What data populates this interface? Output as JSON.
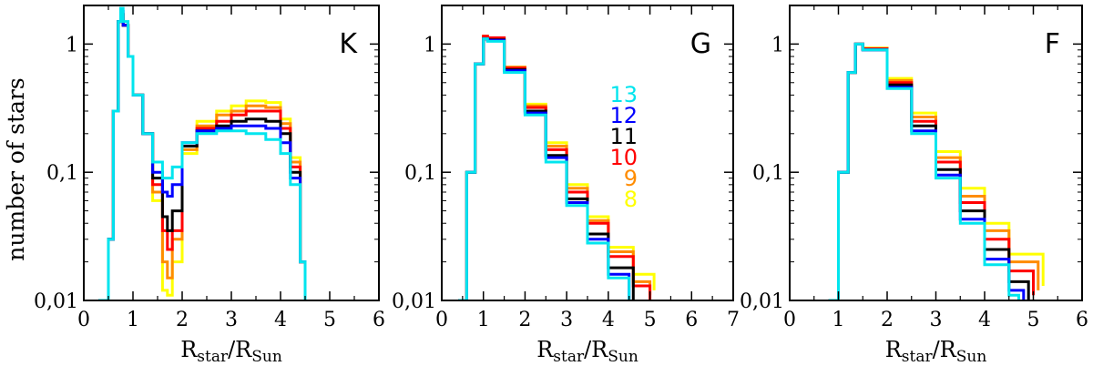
{
  "figure": {
    "ylabel": "number of stars",
    "xlabel_main": "R",
    "xlabel_sub1": "star",
    "xlabel_slash": "/R",
    "xlabel_sub2": "Sun"
  },
  "colors": {
    "8": "#ffff00",
    "9": "#ff8c00",
    "10": "#ff0000",
    "11": "#000000",
    "12": "#0000ff",
    "13": "#00e5ee"
  },
  "magnitude_legend": {
    "labels": [
      "13",
      "12",
      "11",
      "10",
      "9",
      "8"
    ],
    "colors": [
      "#00e5ee",
      "#0000ff",
      "#000000",
      "#ff0000",
      "#ff8c00",
      "#ffff00"
    ]
  },
  "chart_data": [
    {
      "type": "line",
      "panel_label": "K",
      "xlim": [
        0,
        6
      ],
      "ylim": [
        0.01,
        2
      ],
      "yscale": "log",
      "xticks": [
        "0",
        "1",
        "2",
        "3",
        "4",
        "5",
        "6"
      ],
      "yticks": [
        "0,01",
        "0,1",
        "1"
      ],
      "grid": false,
      "series": [
        {
          "name": "13",
          "color": "#00e5ee",
          "x": [
            0.3,
            0.5,
            0.6,
            0.7,
            0.75,
            0.8,
            0.9,
            1.0,
            1.2,
            1.4,
            1.6,
            1.7,
            1.8,
            2.0,
            2.3,
            2.7,
            3.0,
            3.3,
            3.7,
            4.0,
            4.2,
            4.4,
            4.5
          ],
          "y": [
            0.01,
            0.03,
            0.3,
            1.5,
            1.9,
            1.5,
            0.8,
            0.4,
            0.2,
            0.12,
            0.09,
            0.09,
            0.11,
            0.17,
            0.2,
            0.21,
            0.21,
            0.2,
            0.18,
            0.14,
            0.08,
            0.02,
            0.01
          ]
        },
        {
          "name": "12",
          "color": "#0000ff",
          "x": [
            0.3,
            0.5,
            0.6,
            0.7,
            0.75,
            0.8,
            0.9,
            1.0,
            1.2,
            1.4,
            1.6,
            1.7,
            1.8,
            2.0,
            2.3,
            2.7,
            3.0,
            3.3,
            3.7,
            4.0,
            4.2,
            4.4,
            4.5
          ],
          "y": [
            0.01,
            0.03,
            0.3,
            1.5,
            1.8,
            1.4,
            0.8,
            0.4,
            0.2,
            0.1,
            0.07,
            0.065,
            0.08,
            0.17,
            0.21,
            0.22,
            0.23,
            0.23,
            0.22,
            0.17,
            0.09,
            0.02,
            0.01
          ]
        },
        {
          "name": "11",
          "color": "#000000",
          "x": [
            0.3,
            0.5,
            0.6,
            0.7,
            0.75,
            0.8,
            0.9,
            1.0,
            1.2,
            1.4,
            1.6,
            1.7,
            1.8,
            2.0,
            2.3,
            2.7,
            3.0,
            3.3,
            3.7,
            4.0,
            4.2,
            4.4,
            4.5
          ],
          "y": [
            0.01,
            0.03,
            0.3,
            1.5,
            1.7,
            1.4,
            0.8,
            0.4,
            0.2,
            0.09,
            0.045,
            0.035,
            0.05,
            0.16,
            0.21,
            0.23,
            0.25,
            0.26,
            0.25,
            0.2,
            0.1,
            0.02,
            0.01
          ]
        },
        {
          "name": "10",
          "color": "#ff0000",
          "x": [
            0.3,
            0.5,
            0.6,
            0.7,
            0.75,
            0.8,
            0.9,
            1.0,
            1.2,
            1.4,
            1.6,
            1.7,
            1.8,
            2.0,
            2.3,
            2.7,
            3.0,
            3.3,
            3.7,
            4.0,
            4.2,
            4.4,
            4.5
          ],
          "y": [
            0.01,
            0.03,
            0.3,
            1.5,
            1.7,
            1.4,
            0.8,
            0.4,
            0.2,
            0.08,
            0.035,
            0.025,
            0.035,
            0.16,
            0.22,
            0.25,
            0.28,
            0.3,
            0.3,
            0.22,
            0.11,
            0.02,
            0.01
          ]
        },
        {
          "name": "9",
          "color": "#ff8c00",
          "x": [
            0.3,
            0.5,
            0.6,
            0.7,
            0.75,
            0.8,
            0.9,
            1.0,
            1.2,
            1.4,
            1.6,
            1.7,
            1.8,
            2.0,
            2.3,
            2.7,
            3.0,
            3.3,
            3.7,
            4.0,
            4.2,
            4.4,
            4.5
          ],
          "y": [
            0.01,
            0.03,
            0.3,
            1.5,
            1.7,
            1.4,
            0.8,
            0.4,
            0.2,
            0.07,
            0.02,
            0.015,
            0.03,
            0.15,
            0.23,
            0.28,
            0.3,
            0.33,
            0.32,
            0.24,
            0.12,
            0.02,
            0.01
          ]
        },
        {
          "name": "8",
          "color": "#ffff00",
          "x": [
            0.3,
            0.5,
            0.6,
            0.7,
            0.75,
            0.8,
            0.9,
            1.0,
            1.2,
            1.4,
            1.6,
            1.7,
            1.8,
            2.0,
            2.3,
            2.7,
            3.0,
            3.3,
            3.7,
            4.0,
            4.2,
            4.4,
            4.5
          ],
          "y": [
            0.01,
            0.03,
            0.3,
            1.5,
            1.7,
            1.4,
            0.8,
            0.4,
            0.2,
            0.06,
            0.012,
            0.011,
            0.02,
            0.14,
            0.25,
            0.3,
            0.33,
            0.36,
            0.35,
            0.26,
            0.13,
            0.02,
            0.01
          ]
        }
      ]
    },
    {
      "type": "line",
      "panel_label": "G",
      "xlim": [
        0,
        7
      ],
      "ylim": [
        0.01,
        2
      ],
      "yscale": "log",
      "xticks": [
        "0",
        "1",
        "2",
        "3",
        "4",
        "5",
        "6",
        "7"
      ],
      "yticks": [
        "0,01",
        "0,1",
        "1"
      ],
      "grid": false,
      "series": [
        {
          "name": "13",
          "color": "#00e5ee",
          "x": [
            0.4,
            0.6,
            0.8,
            1.0,
            1.1,
            1.5,
            2.0,
            2.5,
            3.0,
            3.5,
            4.0,
            4.5
          ],
          "y": [
            0.01,
            0.1,
            0.7,
            1.1,
            1.05,
            0.6,
            0.28,
            0.12,
            0.055,
            0.028,
            0.015,
            0.01
          ]
        },
        {
          "name": "12",
          "color": "#0000ff",
          "x": [
            0.4,
            0.6,
            0.8,
            1.0,
            1.1,
            1.5,
            2.0,
            2.5,
            3.0,
            3.5,
            4.0,
            4.5
          ],
          "y": [
            0.01,
            0.1,
            0.7,
            1.1,
            1.07,
            0.62,
            0.29,
            0.13,
            0.058,
            0.03,
            0.016,
            0.01
          ]
        },
        {
          "name": "11",
          "color": "#000000",
          "x": [
            0.4,
            0.6,
            0.8,
            1.0,
            1.1,
            1.5,
            2.0,
            2.5,
            3.0,
            3.5,
            4.0,
            4.6
          ],
          "y": [
            0.01,
            0.1,
            0.7,
            1.1,
            1.08,
            0.63,
            0.3,
            0.135,
            0.062,
            0.033,
            0.018,
            0.01
          ]
        },
        {
          "name": "10",
          "color": "#ff0000",
          "x": [
            0.4,
            0.6,
            0.8,
            1.0,
            1.1,
            1.5,
            2.0,
            2.5,
            3.0,
            3.5,
            4.0,
            4.6,
            5.0
          ],
          "y": [
            0.01,
            0.1,
            0.7,
            1.15,
            1.12,
            0.65,
            0.32,
            0.15,
            0.07,
            0.04,
            0.022,
            0.013,
            0.01
          ]
        },
        {
          "name": "9",
          "color": "#ff8c00",
          "x": [
            0.4,
            0.6,
            0.8,
            1.0,
            1.1,
            1.5,
            2.0,
            2.5,
            3.0,
            3.5,
            4.0,
            4.6,
            5.0
          ],
          "y": [
            0.01,
            0.1,
            0.7,
            1.15,
            1.12,
            0.66,
            0.33,
            0.16,
            0.075,
            0.042,
            0.024,
            0.014,
            0.011
          ]
        },
        {
          "name": "8",
          "color": "#ffff00",
          "x": [
            0.4,
            0.6,
            0.8,
            1.0,
            1.1,
            1.5,
            2.0,
            2.5,
            3.0,
            3.5,
            4.0,
            4.6,
            5.1
          ],
          "y": [
            0.01,
            0.1,
            0.7,
            1.1,
            1.1,
            0.66,
            0.34,
            0.17,
            0.08,
            0.045,
            0.026,
            0.016,
            0.012
          ]
        }
      ]
    },
    {
      "type": "line",
      "panel_label": "F",
      "xlim": [
        0,
        6
      ],
      "ylim": [
        0.01,
        2
      ],
      "yscale": "log",
      "xticks": [
        "0",
        "1",
        "2",
        "3",
        "4",
        "5",
        "6"
      ],
      "yticks": [
        "0,01",
        "0,1",
        "1"
      ],
      "grid": false,
      "series": [
        {
          "name": "13",
          "color": "#00e5ee",
          "x": [
            0.8,
            1.0,
            1.2,
            1.35,
            1.5,
            2.0,
            2.5,
            3.0,
            3.5,
            4.0,
            4.5,
            4.7
          ],
          "y": [
            0.01,
            0.1,
            0.6,
            1.0,
            0.9,
            0.45,
            0.2,
            0.09,
            0.04,
            0.019,
            0.011,
            0.01
          ]
        },
        {
          "name": "12",
          "color": "#0000ff",
          "x": [
            0.8,
            1.0,
            1.2,
            1.35,
            1.5,
            2.0,
            2.5,
            3.0,
            3.5,
            4.0,
            4.5,
            4.8
          ],
          "y": [
            0.01,
            0.1,
            0.6,
            1.0,
            0.9,
            0.46,
            0.21,
            0.095,
            0.043,
            0.021,
            0.012,
            0.01
          ]
        },
        {
          "name": "11",
          "color": "#000000",
          "x": [
            0.8,
            1.0,
            1.2,
            1.35,
            1.5,
            2.0,
            2.5,
            3.0,
            3.5,
            4.0,
            4.5,
            4.9
          ],
          "y": [
            0.01,
            0.1,
            0.6,
            1.0,
            0.9,
            0.48,
            0.23,
            0.105,
            0.05,
            0.025,
            0.014,
            0.01
          ]
        },
        {
          "name": "10",
          "color": "#ff0000",
          "x": [
            0.8,
            1.0,
            1.2,
            1.35,
            1.5,
            2.0,
            2.5,
            3.0,
            3.5,
            4.0,
            4.5,
            5.0
          ],
          "y": [
            0.01,
            0.1,
            0.6,
            1.0,
            0.92,
            0.5,
            0.25,
            0.12,
            0.058,
            0.03,
            0.017,
            0.011
          ]
        },
        {
          "name": "9",
          "color": "#ff8c00",
          "x": [
            0.8,
            1.0,
            1.2,
            1.35,
            1.5,
            2.0,
            2.5,
            3.0,
            3.5,
            4.0,
            4.5,
            5.1
          ],
          "y": [
            0.01,
            0.1,
            0.6,
            1.0,
            0.92,
            0.52,
            0.27,
            0.13,
            0.065,
            0.035,
            0.02,
            0.012
          ]
        },
        {
          "name": "8",
          "color": "#ffff00",
          "x": [
            0.8,
            1.0,
            1.2,
            1.35,
            1.5,
            2.0,
            2.5,
            3.0,
            3.5,
            4.0,
            4.5,
            5.2
          ],
          "y": [
            0.01,
            0.1,
            0.6,
            1.0,
            0.93,
            0.54,
            0.29,
            0.145,
            0.075,
            0.04,
            0.023,
            0.013
          ]
        }
      ]
    }
  ]
}
